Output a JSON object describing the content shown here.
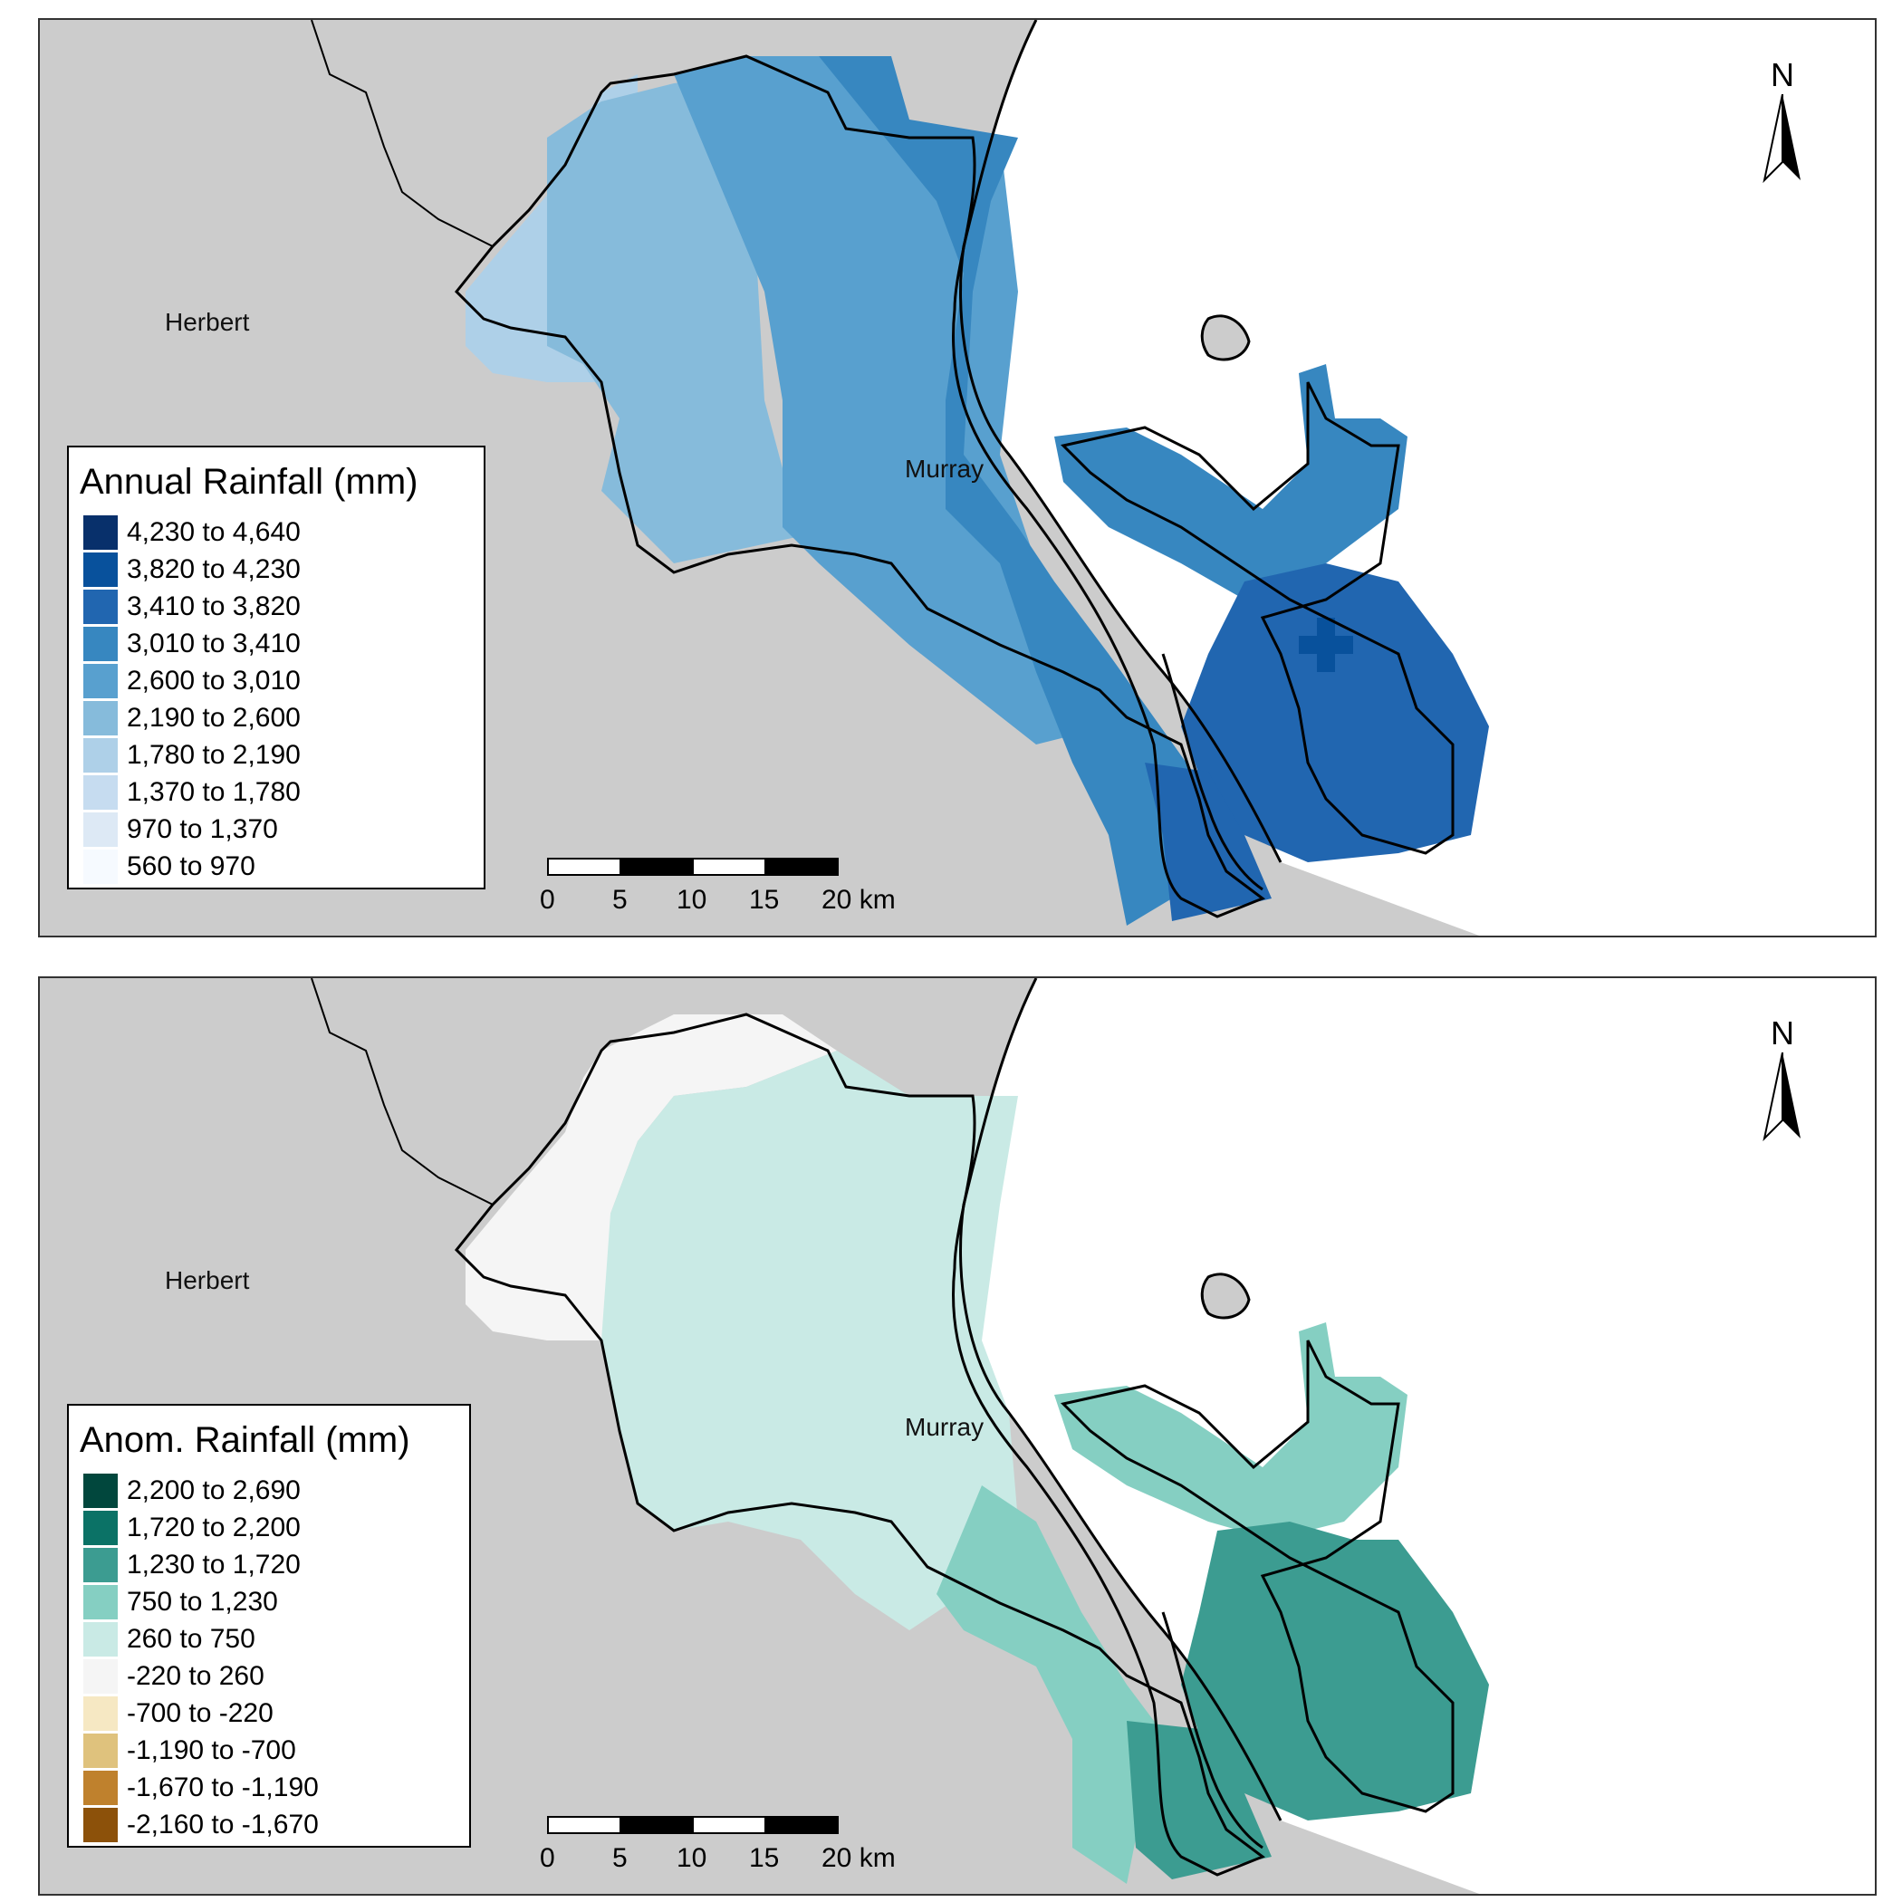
{
  "top_map": {
    "legend": {
      "title": "Annual Rainfall (mm)",
      "items": [
        {
          "label": "4,230 to 4,640",
          "color": "#08306b"
        },
        {
          "label": "3,820 to 4,230",
          "color": "#08519c"
        },
        {
          "label": "3,410 to 3,820",
          "color": "#2166b0"
        },
        {
          "label": "3,010 to 3,410",
          "color": "#3787c0"
        },
        {
          "label": "2,600 to 3,010",
          "color": "#58a0cf"
        },
        {
          "label": "2,190 to 2,600",
          "color": "#86bbdb"
        },
        {
          "label": "1,780 to 2,190",
          "color": "#aed0e8"
        },
        {
          "label": "1,370 to 1,780",
          "color": "#c6dcf0"
        },
        {
          "label": "970 to 1,370",
          "color": "#dde9f5"
        },
        {
          "label": "560 to 970",
          "color": "#f6faff"
        }
      ]
    },
    "places": {
      "herbert": "Herbert",
      "murray": "Murray"
    },
    "north_label": "N",
    "scalebar": {
      "ticks": [
        "0",
        "5",
        "10",
        "15",
        "20 km"
      ]
    }
  },
  "bottom_map": {
    "legend": {
      "title": "Anom. Rainfall (mm)",
      "items": [
        {
          "label": "2,200 to 2,690",
          "color": "#01473d"
        },
        {
          "label": "1,720 to 2,200",
          "color": "#0b7266"
        },
        {
          "label": "1,230 to 1,720",
          "color": "#3c9c91"
        },
        {
          "label": "750 to 1,230",
          "color": "#85cfc2"
        },
        {
          "label": "260 to 750",
          "color": "#c9eae5"
        },
        {
          "label": "-220 to 260",
          "color": "#f5f5f5"
        },
        {
          "label": "-700 to -220",
          "color": "#f6e8c3"
        },
        {
          "label": "-1,190 to -700",
          "color": "#dfc27d"
        },
        {
          "label": "-1,670 to -1,190",
          "color": "#bf812d"
        },
        {
          "label": "-2,160 to -1,670",
          "color": "#8c510a"
        }
      ]
    },
    "places": {
      "herbert": "Herbert",
      "murray": "Murray"
    },
    "north_label": "N",
    "scalebar": {
      "ticks": [
        "0",
        "5",
        "10",
        "15",
        "20 km"
      ]
    }
  },
  "colors": {
    "land": "#cccccc",
    "sea": "#ffffff",
    "outline": "#000000"
  }
}
